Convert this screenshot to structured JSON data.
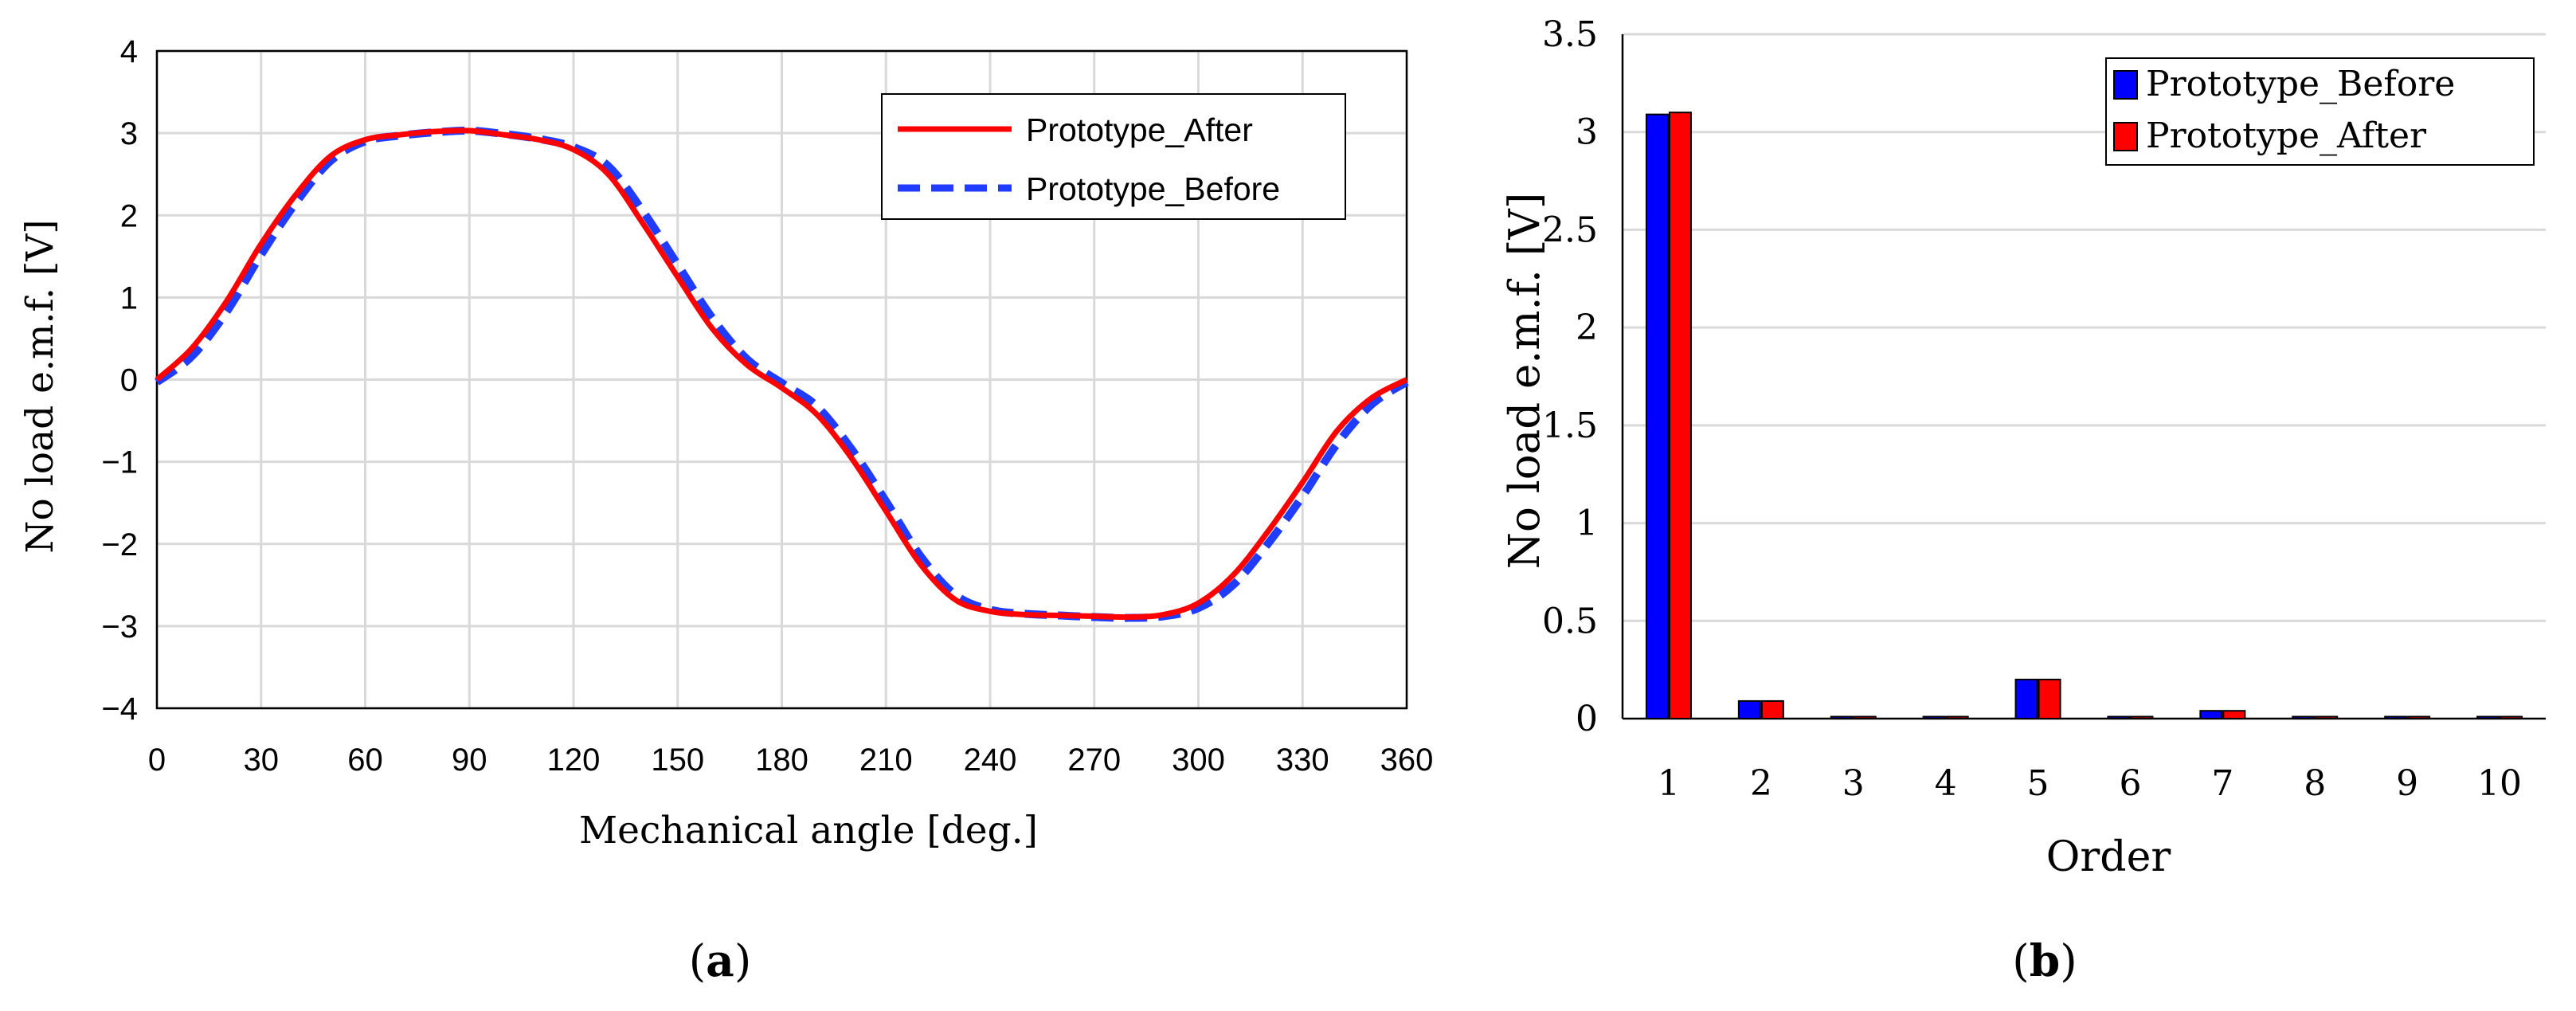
{
  "colors": {
    "after": "#ff0000",
    "before": "#1f3cff",
    "bar_before": "#0000ff",
    "bar_after": "#ff0000",
    "grid": "#d9d9d9",
    "axis": "#000000"
  },
  "chart_data": [
    {
      "id": "a",
      "type": "line",
      "panel_label": "(a)",
      "panel_letter": "a",
      "xlabel": "Mechanical angle [deg.]",
      "ylabel": "No load e.m.f. [V]",
      "xlim": [
        0,
        360
      ],
      "ylim": [
        -4,
        4
      ],
      "xticks": [
        0,
        30,
        60,
        90,
        120,
        150,
        180,
        210,
        240,
        270,
        300,
        330,
        360
      ],
      "yticks": [
        4,
        3,
        2,
        1,
        0,
        -1,
        -2,
        -3,
        -4
      ],
      "ytick_labels": [
        "4",
        "3",
        "2",
        "1",
        "0",
        "−1",
        "−2",
        "−3",
        "−4"
      ],
      "grid": true,
      "legend_position": "top-right",
      "series": [
        {
          "name": "Prototype_After",
          "style": "solid",
          "x": [
            0,
            10,
            20,
            30,
            40,
            50,
            60,
            70,
            80,
            90,
            100,
            110,
            120,
            130,
            140,
            150,
            160,
            170,
            180,
            190,
            200,
            210,
            220,
            230,
            240,
            250,
            260,
            270,
            280,
            290,
            300,
            310,
            320,
            330,
            340,
            350,
            360
          ],
          "y": [
            0.0,
            0.38,
            0.95,
            1.65,
            2.25,
            2.72,
            2.92,
            2.98,
            3.02,
            3.03,
            2.98,
            2.92,
            2.8,
            2.5,
            1.9,
            1.25,
            0.62,
            0.18,
            -0.1,
            -0.42,
            -0.95,
            -1.6,
            -2.25,
            -2.68,
            -2.82,
            -2.86,
            -2.87,
            -2.88,
            -2.89,
            -2.86,
            -2.72,
            -2.38,
            -1.85,
            -1.25,
            -0.62,
            -0.22,
            0.0
          ]
        },
        {
          "name": "Prototype_Before",
          "style": "dashed",
          "x": [
            0,
            10,
            20,
            30,
            40,
            50,
            60,
            70,
            80,
            90,
            100,
            110,
            120,
            130,
            140,
            150,
            160,
            170,
            180,
            190,
            200,
            210,
            220,
            230,
            240,
            250,
            260,
            270,
            280,
            290,
            300,
            310,
            320,
            330,
            340,
            350,
            360
          ],
          "y": [
            -0.03,
            0.28,
            0.82,
            1.52,
            2.15,
            2.66,
            2.9,
            2.97,
            3.01,
            3.03,
            2.99,
            2.93,
            2.83,
            2.6,
            2.05,
            1.4,
            0.75,
            0.25,
            -0.04,
            -0.32,
            -0.84,
            -1.48,
            -2.15,
            -2.62,
            -2.8,
            -2.85,
            -2.87,
            -2.89,
            -2.9,
            -2.88,
            -2.78,
            -2.5,
            -2.0,
            -1.42,
            -0.78,
            -0.3,
            -0.03
          ]
        }
      ]
    },
    {
      "id": "b",
      "type": "bar",
      "panel_label": "(b)",
      "panel_letter": "b",
      "xlabel": "Order",
      "ylabel": "No load e.m.f. [V]",
      "ylim": [
        0,
        3.5
      ],
      "yticks": [
        0,
        0.5,
        1,
        1.5,
        2,
        2.5,
        3,
        3.5
      ],
      "ytick_labels": [
        "0",
        "0.5",
        "1",
        "1.5",
        "2",
        "2.5",
        "3",
        "3.5"
      ],
      "grid": true,
      "legend_position": "top-right",
      "categories": [
        "1",
        "2",
        "3",
        "4",
        "5",
        "6",
        "7",
        "8",
        "9",
        "10"
      ],
      "series": [
        {
          "name": "Prototype_Before",
          "values": [
            3.09,
            0.09,
            0.01,
            0.01,
            0.2,
            0.01,
            0.04,
            0.01,
            0.01,
            0.01
          ]
        },
        {
          "name": "Prototype_After",
          "values": [
            3.1,
            0.09,
            0.01,
            0.01,
            0.2,
            0.01,
            0.04,
            0.01,
            0.01,
            0.01
          ]
        }
      ]
    }
  ]
}
